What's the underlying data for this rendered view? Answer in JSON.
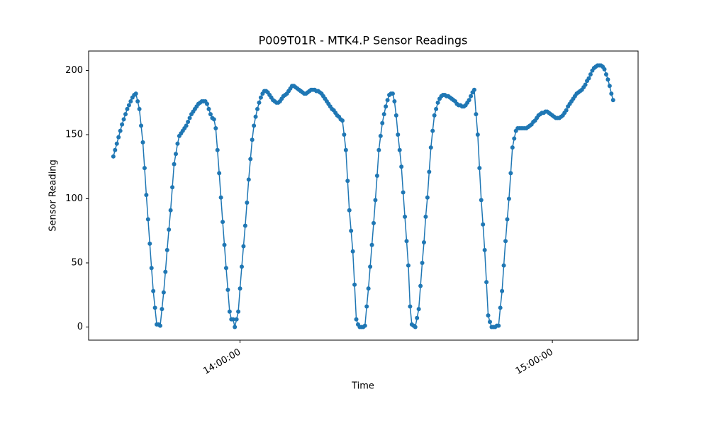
{
  "chart_data": {
    "type": "line",
    "title": "P009T01R - MTK4.P Sensor Readings",
    "xlabel": "Time",
    "ylabel": "Sensor Reading",
    "color": "#1f77b4",
    "marker": true,
    "x": [
      "13:35:40",
      "13:36:00",
      "13:36:20",
      "13:36:40",
      "13:37:00",
      "13:37:20",
      "13:37:40",
      "13:38:00",
      "13:38:20",
      "13:38:40",
      "13:39:00",
      "13:39:20",
      "13:39:40",
      "13:40:00",
      "13:40:20",
      "13:40:40",
      "13:41:00",
      "13:41:20",
      "13:41:40",
      "13:42:00",
      "13:42:20",
      "13:42:40",
      "13:43:00",
      "13:43:20",
      "13:43:40",
      "13:44:00",
      "13:44:20",
      "13:44:40",
      "13:45:00",
      "13:45:20",
      "13:45:40",
      "13:46:00",
      "13:46:20",
      "13:46:40",
      "13:47:00",
      "13:47:20",
      "13:47:40",
      "13:48:00",
      "13:48:20",
      "13:48:40",
      "13:49:00",
      "13:49:20",
      "13:49:40",
      "13:50:00",
      "13:50:20",
      "13:50:40",
      "13:51:00",
      "13:51:20",
      "13:51:40",
      "13:52:00",
      "13:52:20",
      "13:52:40",
      "13:53:00",
      "13:53:20",
      "13:53:40",
      "13:54:00",
      "13:54:20",
      "13:54:40",
      "13:55:00",
      "13:55:20",
      "13:55:40",
      "13:56:00",
      "13:56:20",
      "13:56:40",
      "13:57:00",
      "13:57:20",
      "13:57:40",
      "13:58:00",
      "13:58:20",
      "13:58:40",
      "13:59:00",
      "13:59:20",
      "13:59:40",
      "14:00:00",
      "14:00:20",
      "14:00:40",
      "14:01:00",
      "14:01:20",
      "14:01:40",
      "14:02:00",
      "14:02:20",
      "14:02:40",
      "14:03:00",
      "14:03:20",
      "14:03:40",
      "14:04:00",
      "14:04:20",
      "14:04:40",
      "14:05:00",
      "14:05:20",
      "14:05:40",
      "14:06:00",
      "14:06:20",
      "14:06:40",
      "14:07:00",
      "14:07:20",
      "14:07:40",
      "14:08:00",
      "14:08:20",
      "14:08:40",
      "14:09:00",
      "14:09:20",
      "14:09:40",
      "14:10:00",
      "14:10:20",
      "14:10:40",
      "14:11:00",
      "14:11:20",
      "14:11:40",
      "14:12:00",
      "14:12:20",
      "14:12:40",
      "14:13:00",
      "14:13:20",
      "14:13:40",
      "14:14:00",
      "14:14:20",
      "14:14:40",
      "14:15:00",
      "14:15:20",
      "14:15:40",
      "14:16:00",
      "14:16:20",
      "14:16:40",
      "14:17:00",
      "14:17:20",
      "14:17:40",
      "14:18:00",
      "14:18:20",
      "14:18:40",
      "14:19:00",
      "14:19:20",
      "14:19:40",
      "14:20:00",
      "14:20:20",
      "14:20:40",
      "14:21:00",
      "14:21:20",
      "14:21:40",
      "14:22:00",
      "14:22:20",
      "14:22:40",
      "14:23:00",
      "14:23:20",
      "14:23:40",
      "14:24:00",
      "14:24:20",
      "14:24:40",
      "14:25:00",
      "14:25:20",
      "14:25:40",
      "14:26:00",
      "14:26:20",
      "14:26:40",
      "14:27:00",
      "14:27:20",
      "14:27:40",
      "14:28:00",
      "14:28:20",
      "14:28:40",
      "14:29:00",
      "14:29:20",
      "14:29:40",
      "14:30:00",
      "14:30:20",
      "14:30:40",
      "14:31:00",
      "14:31:20",
      "14:31:40",
      "14:32:00",
      "14:32:20",
      "14:32:40",
      "14:33:00",
      "14:33:20",
      "14:33:40",
      "14:34:00",
      "14:34:20",
      "14:34:40",
      "14:35:00",
      "14:35:20",
      "14:35:40",
      "14:36:00",
      "14:36:20",
      "14:36:40",
      "14:37:00",
      "14:37:20",
      "14:37:40",
      "14:38:00",
      "14:38:20",
      "14:38:40",
      "14:39:00",
      "14:39:20",
      "14:39:40",
      "14:40:00",
      "14:40:20",
      "14:40:40",
      "14:41:00",
      "14:41:20",
      "14:41:40",
      "14:42:00",
      "14:42:20",
      "14:42:40",
      "14:43:00",
      "14:43:20",
      "14:43:40",
      "14:44:00",
      "14:44:20",
      "14:44:40",
      "14:45:00",
      "14:45:20",
      "14:45:40",
      "14:46:00",
      "14:46:20",
      "14:46:40",
      "14:47:00",
      "14:47:20",
      "14:47:40",
      "14:48:00",
      "14:48:20",
      "14:48:40",
      "14:49:00",
      "14:49:20",
      "14:49:40",
      "14:50:00",
      "14:50:20",
      "14:50:40",
      "14:51:00",
      "14:51:20",
      "14:51:40",
      "14:52:00",
      "14:52:20",
      "14:52:40",
      "14:53:00",
      "14:53:20",
      "14:53:40",
      "14:54:00",
      "14:54:20",
      "14:54:40",
      "14:55:00",
      "14:55:20",
      "14:55:40",
      "14:56:00",
      "14:56:20",
      "14:56:40",
      "14:57:00",
      "14:57:20",
      "14:57:40",
      "14:58:00",
      "14:58:20",
      "14:58:40",
      "14:59:00",
      "14:59:20",
      "14:59:40",
      "15:00:00",
      "15:00:20",
      "15:00:40",
      "15:01:00",
      "15:01:20",
      "15:01:40",
      "15:02:00",
      "15:02:20",
      "15:02:40",
      "15:03:00",
      "15:03:20",
      "15:03:40",
      "15:04:00",
      "15:04:20",
      "15:04:40",
      "15:05:00",
      "15:05:20",
      "15:05:40",
      "15:06:00",
      "15:06:20",
      "15:06:40",
      "15:07:00",
      "15:07:20",
      "15:07:40",
      "15:08:00",
      "15:08:20",
      "15:08:40",
      "15:09:00",
      "15:09:20",
      "15:09:40",
      "15:10:00",
      "15:10:20",
      "15:10:40",
      "15:11:00",
      "15:11:20",
      "15:11:40"
    ],
    "values": [
      133,
      138,
      143,
      148,
      153,
      158,
      162,
      166,
      170,
      173,
      176,
      179,
      181,
      182,
      176,
      170,
      157,
      144,
      124,
      103,
      84,
      65,
      46,
      28,
      15,
      2,
      2,
      1,
      14,
      27,
      43,
      60,
      76,
      91,
      109,
      127,
      135,
      143,
      149,
      151,
      153,
      155,
      157,
      160,
      163,
      166,
      168,
      170,
      172,
      174,
      175,
      176,
      176,
      176,
      174,
      170,
      166,
      163,
      162,
      155,
      138,
      120,
      101,
      82,
      64,
      46,
      29,
      12,
      6,
      6,
      0,
      6,
      12,
      30,
      47,
      63,
      79,
      97,
      115,
      131,
      146,
      157,
      164,
      170,
      175,
      179,
      182,
      184,
      184,
      183,
      181,
      179,
      177,
      176,
      175,
      175,
      176,
      178,
      180,
      181,
      182,
      184,
      186,
      188,
      188,
      187,
      186,
      185,
      184,
      183,
      182,
      182,
      183,
      184,
      185,
      185,
      185,
      184,
      184,
      183,
      182,
      180,
      178,
      176,
      174,
      172,
      170,
      169,
      167,
      165,
      164,
      162,
      161,
      150,
      138,
      114,
      91,
      75,
      59,
      33,
      6,
      2,
      0,
      0,
      0,
      1,
      16,
      30,
      47,
      64,
      81,
      99,
      118,
      138,
      149,
      159,
      166,
      172,
      177,
      181,
      182,
      182,
      176,
      165,
      150,
      138,
      125,
      105,
      86,
      67,
      48,
      16,
      2,
      1,
      0,
      7,
      14,
      32,
      50,
      66,
      86,
      101,
      121,
      140,
      153,
      165,
      170,
      175,
      178,
      180,
      181,
      181,
      180,
      180,
      179,
      178,
      177,
      176,
      174,
      173,
      173,
      172,
      172,
      173,
      175,
      177,
      180,
      183,
      185,
      166,
      150,
      124,
      99,
      80,
      60,
      35,
      9,
      4,
      0,
      0,
      0,
      1,
      1,
      15,
      28,
      48,
      67,
      84,
      100,
      120,
      140,
      147,
      153,
      155,
      155,
      155,
      155,
      155,
      155,
      156,
      157,
      158,
      160,
      161,
      163,
      165,
      166,
      167,
      167,
      168,
      168,
      167,
      166,
      165,
      164,
      163,
      163,
      163,
      164,
      165,
      167,
      169,
      172,
      174,
      176,
      178,
      180,
      182,
      183,
      184,
      185,
      187,
      189,
      192,
      194,
      197,
      200,
      202,
      203,
      204,
      204,
      204,
      203,
      201,
      197,
      193,
      188,
      182,
      177
    ],
    "xlim": [
      "13:30:55",
      "15:16:28"
    ],
    "xticks": [
      "14:00:00",
      "15:00:00"
    ],
    "ylim": [
      -10.25,
      215.25
    ],
    "yticks": [
      0,
      50,
      100,
      150,
      200
    ]
  }
}
